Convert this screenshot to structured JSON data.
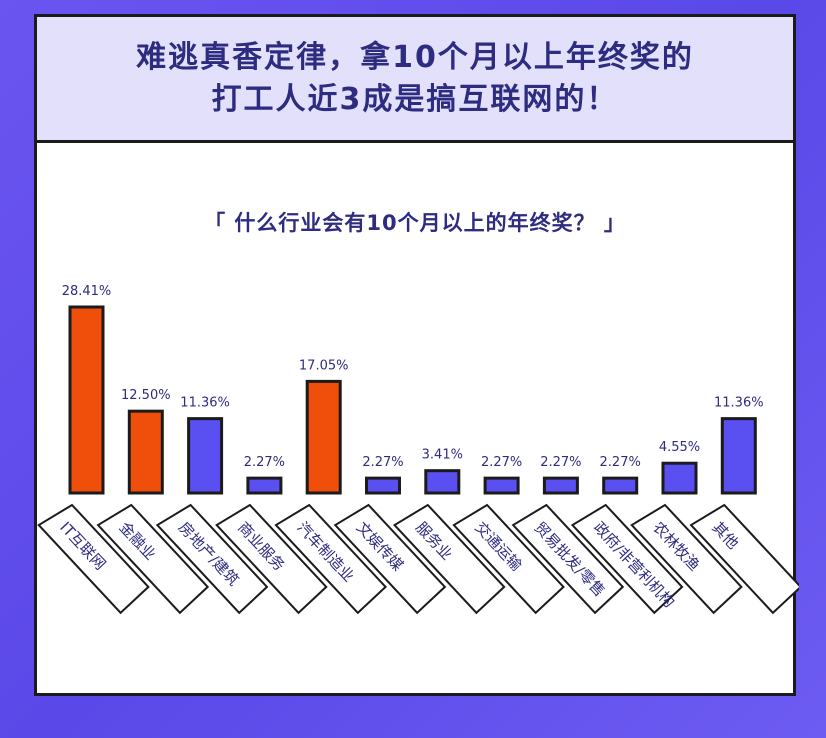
{
  "header": {
    "title_line1": "难逃真香定律，拿10个月以上年终奖的",
    "title_line2": "打工人近3成是搞互联网的！"
  },
  "colors": {
    "highlight": "#f04e0b",
    "normal": "#5a4ff0",
    "text": "#2e2c80",
    "label_box_fill": "#ffffff",
    "stroke": "#1b1b1b"
  },
  "chart_data": {
    "type": "bar",
    "title": "「 什么行业会有10个月以上的年终奖？ 」",
    "categories": [
      "IT互联网",
      "金融业",
      "房地产/建筑",
      "商业服务",
      "汽车制造业",
      "文娱传媒",
      "服务业",
      "交通运输",
      "贸易批发/零售",
      "政府/非营利机构",
      "农林牧渔",
      "其他"
    ],
    "values": [
      28.41,
      12.5,
      11.36,
      2.27,
      17.05,
      2.27,
      3.41,
      2.27,
      2.27,
      2.27,
      4.55,
      11.36
    ],
    "data_labels": [
      "28.41%",
      "12.50%",
      "11.36%",
      "2.27%",
      "17.05%",
      "2.27%",
      "3.41%",
      "2.27%",
      "2.27%",
      "2.27%",
      "4.55%",
      "11.36%"
    ],
    "highlighted": [
      true,
      true,
      false,
      false,
      true,
      false,
      false,
      false,
      false,
      false,
      false,
      false
    ],
    "ylim": [
      0,
      28.41
    ],
    "grid": false,
    "legend": "none"
  }
}
